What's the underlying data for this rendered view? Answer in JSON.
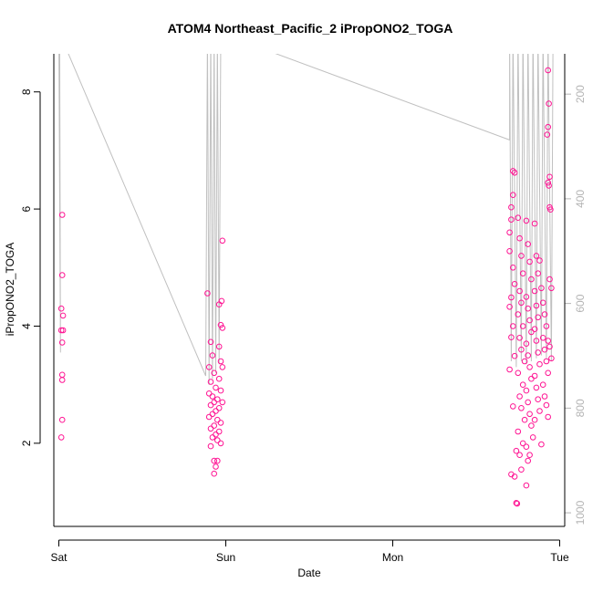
{
  "chart_data": {
    "type": "scatter",
    "title": "ATOM4 Northeast_Pacific_2 iPropONO2_TOGA",
    "xlabel": "Date",
    "ylabel": "iPropONO2_TOGA",
    "x_ticks": [
      "Sat",
      "Sun",
      "Mon",
      "Tue"
    ],
    "x_tick_values": [
      0,
      1,
      2,
      3
    ],
    "xlim": [
      -0.03,
      3.03
    ],
    "ylim": [
      0.58,
      8.65
    ],
    "y_ticks": [
      2,
      4,
      6,
      8
    ],
    "y2_ticks": [
      200,
      400,
      600,
      800,
      1000
    ],
    "y2_lim": [
      1026,
      123
    ],
    "y2_color": "#b4b4b4",
    "point_color": "#ff1493",
    "line_color": "#c0c0c0",
    "grid": false,
    "series": [
      {
        "values": [
          [
            0.02,
            5.9
          ],
          [
            0.02,
            4.87
          ],
          [
            0.015,
            4.3
          ],
          [
            0.025,
            4.18
          ],
          [
            0.015,
            3.93
          ],
          [
            0.025,
            3.93
          ],
          [
            0.02,
            3.72
          ],
          [
            0.02,
            3.17
          ],
          [
            0.02,
            3.08
          ],
          [
            0.02,
            2.4
          ],
          [
            0.015,
            2.1
          ],
          [
            0.89,
            4.56
          ],
          [
            0.91,
            3.73
          ],
          [
            0.92,
            3.5
          ],
          [
            0.9,
            3.3
          ],
          [
            0.93,
            3.2
          ],
          [
            0.91,
            3.05
          ],
          [
            0.94,
            2.95
          ],
          [
            0.9,
            2.85
          ],
          [
            0.92,
            2.8
          ],
          [
            0.95,
            2.75
          ],
          [
            0.93,
            2.7
          ],
          [
            0.91,
            2.65
          ],
          [
            0.96,
            2.6
          ],
          [
            0.94,
            2.55
          ],
          [
            0.92,
            2.5
          ],
          [
            0.9,
            2.45
          ],
          [
            0.95,
            2.4
          ],
          [
            0.97,
            2.35
          ],
          [
            0.93,
            2.3
          ],
          [
            0.91,
            2.25
          ],
          [
            0.96,
            2.2
          ],
          [
            0.94,
            2.15
          ],
          [
            0.92,
            2.1
          ],
          [
            0.95,
            2.05
          ],
          [
            0.97,
            2.0
          ],
          [
            0.91,
            1.95
          ],
          [
            0.93,
            1.7
          ],
          [
            0.95,
            1.7
          ],
          [
            0.94,
            1.6
          ],
          [
            0.93,
            1.48
          ],
          [
            0.96,
            3.65
          ],
          [
            0.97,
            3.4
          ],
          [
            0.98,
            3.3
          ],
          [
            0.96,
            3.1
          ],
          [
            0.97,
            2.9
          ],
          [
            0.98,
            2.7
          ],
          [
            0.96,
            4.37
          ],
          [
            0.97,
            4.02
          ],
          [
            0.98,
            3.97
          ],
          [
            0.975,
            4.43
          ],
          [
            0.98,
            5.46
          ],
          [
            2.7,
            5.6
          ],
          [
            2.71,
            5.82
          ],
          [
            2.72,
            6.65
          ],
          [
            2.73,
            6.62
          ],
          [
            2.72,
            6.24
          ],
          [
            2.71,
            6.03
          ],
          [
            2.7,
            5.28
          ],
          [
            2.72,
            5.0
          ],
          [
            2.73,
            4.72
          ],
          [
            2.71,
            4.49
          ],
          [
            2.7,
            4.33
          ],
          [
            2.72,
            4.0
          ],
          [
            2.71,
            3.81
          ],
          [
            2.73,
            3.49
          ],
          [
            2.7,
            3.26
          ],
          [
            2.72,
            2.63
          ],
          [
            2.71,
            1.47
          ],
          [
            2.73,
            1.43
          ],
          [
            2.74,
            1.87
          ],
          [
            2.745,
            0.97
          ],
          [
            2.74,
            0.98
          ],
          [
            2.75,
            5.85
          ],
          [
            2.76,
            5.5
          ],
          [
            2.77,
            5.2
          ],
          [
            2.78,
            4.9
          ],
          [
            2.76,
            4.6
          ],
          [
            2.77,
            4.4
          ],
          [
            2.75,
            4.2
          ],
          [
            2.78,
            4.0
          ],
          [
            2.76,
            3.8
          ],
          [
            2.77,
            3.6
          ],
          [
            2.79,
            3.4
          ],
          [
            2.75,
            3.2
          ],
          [
            2.78,
            3.0
          ],
          [
            2.76,
            2.8
          ],
          [
            2.77,
            2.6
          ],
          [
            2.79,
            2.4
          ],
          [
            2.75,
            2.2
          ],
          [
            2.78,
            2.0
          ],
          [
            2.76,
            1.8
          ],
          [
            2.77,
            1.55
          ],
          [
            2.8,
            1.28
          ],
          [
            2.8,
            1.94
          ],
          [
            2.81,
            1.7
          ],
          [
            2.82,
            1.8
          ],
          [
            2.8,
            5.8
          ],
          [
            2.81,
            5.4
          ],
          [
            2.82,
            5.1
          ],
          [
            2.83,
            4.8
          ],
          [
            2.8,
            4.5
          ],
          [
            2.81,
            4.3
          ],
          [
            2.82,
            4.1
          ],
          [
            2.83,
            3.9
          ],
          [
            2.8,
            3.7
          ],
          [
            2.81,
            3.5
          ],
          [
            2.82,
            3.3
          ],
          [
            2.83,
            3.1
          ],
          [
            2.8,
            2.9
          ],
          [
            2.81,
            2.7
          ],
          [
            2.82,
            2.5
          ],
          [
            2.83,
            2.3
          ],
          [
            2.84,
            2.1
          ],
          [
            2.85,
            5.75
          ],
          [
            2.86,
            5.2
          ],
          [
            2.87,
            4.9
          ],
          [
            2.85,
            4.6
          ],
          [
            2.86,
            4.35
          ],
          [
            2.87,
            4.15
          ],
          [
            2.85,
            3.95
          ],
          [
            2.86,
            3.75
          ],
          [
            2.87,
            3.55
          ],
          [
            2.88,
            3.35
          ],
          [
            2.85,
            3.15
          ],
          [
            2.86,
            2.95
          ],
          [
            2.87,
            2.75
          ],
          [
            2.88,
            2.55
          ],
          [
            2.85,
            2.4
          ],
          [
            2.89,
            1.98
          ],
          [
            2.9,
            4.4
          ],
          [
            2.91,
            4.2
          ],
          [
            2.92,
            4.0
          ],
          [
            2.9,
            3.8
          ],
          [
            2.91,
            3.6
          ],
          [
            2.92,
            3.4
          ],
          [
            2.93,
            3.2
          ],
          [
            2.9,
            3.0
          ],
          [
            2.91,
            2.8
          ],
          [
            2.92,
            2.65
          ],
          [
            2.93,
            2.45
          ],
          [
            2.88,
            5.12
          ],
          [
            2.89,
            4.65
          ],
          [
            2.93,
            8.37
          ],
          [
            2.935,
            7.8
          ],
          [
            2.93,
            7.4
          ],
          [
            2.925,
            7.27
          ],
          [
            2.94,
            6.55
          ],
          [
            2.93,
            6.45
          ],
          [
            2.935,
            6.4
          ],
          [
            2.94,
            6.03
          ],
          [
            2.945,
            5.99
          ],
          [
            2.94,
            4.8
          ],
          [
            2.95,
            4.65
          ],
          [
            2.93,
            3.75
          ],
          [
            2.94,
            3.65
          ],
          [
            2.95,
            3.45
          ]
        ]
      }
    ],
    "line_series": [
      {
        "values": [
          [
            0.0,
            9.0
          ],
          [
            0.01,
            3.55
          ],
          [
            0.005,
            9.0
          ],
          [
            0.88,
            3.15
          ],
          [
            0.89,
            9.0
          ],
          [
            0.9,
            3.0
          ],
          [
            0.91,
            9.0
          ],
          [
            0.92,
            3.1
          ],
          [
            0.93,
            9.0
          ],
          [
            0.94,
            3.2
          ],
          [
            0.95,
            9.0
          ],
          [
            0.96,
            3.35
          ],
          [
            0.97,
            9.0
          ],
          [
            2.7,
            7.18
          ],
          [
            2.7,
            9.0
          ],
          [
            2.71,
            3.4
          ],
          [
            2.72,
            9.0
          ],
          [
            2.74,
            3.3
          ],
          [
            2.75,
            9.0
          ],
          [
            2.77,
            3.4
          ],
          [
            2.78,
            9.0
          ],
          [
            2.8,
            3.35
          ],
          [
            2.81,
            9.0
          ],
          [
            2.83,
            3.4
          ],
          [
            2.84,
            9.0
          ],
          [
            2.86,
            3.45
          ],
          [
            2.87,
            9.0
          ],
          [
            2.89,
            3.5
          ],
          [
            2.9,
            9.0
          ],
          [
            2.92,
            3.45
          ],
          [
            2.93,
            9.0
          ],
          [
            2.95,
            3.4
          ],
          [
            2.96,
            9.0
          ]
        ]
      }
    ]
  }
}
